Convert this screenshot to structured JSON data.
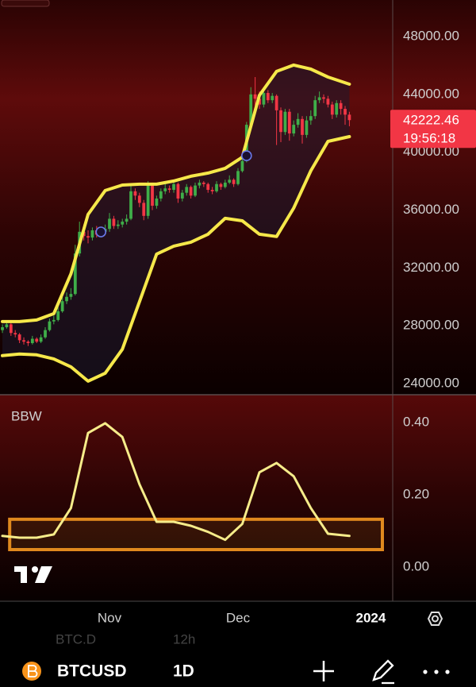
{
  "chart_data": [
    {
      "type": "candlestick",
      "xlim": [
        5.44,
        97.11
      ],
      "xticks": [
        {
          "value": 31,
          "label": "Nov"
        },
        {
          "value": 61,
          "label": "Dec"
        },
        {
          "value": 92,
          "label": "2024"
        }
      ],
      "ylim": [
        23230,
        50530
      ],
      "yticks": [
        {
          "value": 24000,
          "label": "24000.00"
        },
        {
          "value": 28000,
          "label": "28000.00"
        },
        {
          "value": 32000,
          "label": "32000.00"
        },
        {
          "value": 36000,
          "label": "36000.00"
        },
        {
          "value": 40000,
          "label": "40000.00"
        },
        {
          "value": 44000,
          "label": "44000.00"
        },
        {
          "value": 48000,
          "label": "48000.00"
        }
      ],
      "grid": false,
      "up_color": "#3fae49",
      "down_color": "#f23645",
      "x": [
        6,
        7,
        8,
        9,
        10,
        11,
        12,
        13,
        14,
        15,
        16,
        17,
        18,
        19,
        20,
        21,
        22,
        23,
        24,
        25,
        26,
        27,
        28,
        29,
        30,
        31,
        32,
        33,
        34,
        35,
        36,
        37,
        38,
        39,
        40,
        41,
        42,
        43,
        44,
        45,
        46,
        47,
        48,
        49,
        50,
        51,
        52,
        53,
        54,
        55,
        56,
        57,
        58,
        59,
        60,
        61,
        62,
        63,
        64,
        65,
        66,
        67,
        68,
        69,
        70,
        71,
        72,
        73,
        74,
        75,
        76,
        77,
        78,
        79,
        80,
        81,
        82,
        83,
        84,
        85,
        86,
        87
      ],
      "open": [
        27700,
        27900,
        28100,
        27500,
        27400,
        27000,
        26900,
        26800,
        27100,
        26900,
        27200,
        27700,
        28300,
        28400,
        29000,
        29700,
        30000,
        30200,
        33000,
        34500,
        34200,
        34100,
        34600,
        34300,
        34500,
        34700,
        35400,
        34900,
        35000,
        35200,
        35400,
        37300,
        37000,
        36500,
        35600,
        37800,
        36300,
        36800,
        37300,
        37500,
        37400,
        37800,
        36800,
        37200,
        37600,
        37000,
        37700,
        37900,
        37800,
        37400,
        37300,
        37800,
        37600,
        37900,
        38100,
        37800,
        38700,
        39400,
        41900,
        44000,
        43700,
        43300,
        44100,
        43600,
        43900,
        42900,
        41400,
        42800,
        41300,
        41900,
        42300,
        41200,
        42200,
        42500,
        43600,
        43800,
        43700,
        43300,
        42600,
        43400,
        43000,
        42600
      ],
      "high": [
        28100,
        28300,
        28200,
        27700,
        27500,
        27200,
        27000,
        27300,
        27200,
        27400,
        27900,
        28500,
        28700,
        29300,
        30000,
        30300,
        30600,
        33600,
        35200,
        35000,
        34600,
        34800,
        34900,
        34700,
        35000,
        35800,
        35600,
        35300,
        35400,
        35700,
        37800,
        37500,
        37200,
        36700,
        38000,
        37900,
        37000,
        37500,
        37800,
        37700,
        38000,
        37900,
        37400,
        37800,
        37700,
        37900,
        38100,
        38000,
        37900,
        37600,
        38000,
        37900,
        38100,
        38400,
        38200,
        38900,
        39600,
        42100,
        44500,
        45200,
        44200,
        44500,
        44300,
        44100,
        44000,
        43100,
        43000,
        43000,
        42200,
        42700,
        42500,
        42500,
        42900,
        43900,
        44200,
        44000,
        43900,
        43500,
        43600,
        43600,
        43200,
        42800
      ],
      "low": [
        27500,
        27800,
        27300,
        27200,
        26800,
        26700,
        26600,
        26700,
        26800,
        26800,
        27100,
        27600,
        28100,
        28300,
        28900,
        29500,
        29800,
        30100,
        32800,
        33900,
        33700,
        33900,
        34100,
        34100,
        34300,
        34500,
        34700,
        34700,
        34800,
        35000,
        35300,
        36700,
        36200,
        35300,
        35400,
        36000,
        36100,
        36600,
        37100,
        37200,
        37200,
        36500,
        36600,
        37000,
        36800,
        36900,
        37500,
        37600,
        37200,
        37100,
        37200,
        37400,
        37500,
        37800,
        37600,
        37700,
        38600,
        39300,
        41700,
        43200,
        43000,
        43100,
        43400,
        43400,
        40500,
        40700,
        41200,
        40800,
        41100,
        41700,
        40600,
        41000,
        41900,
        42300,
        43400,
        43400,
        43100,
        42300,
        42400,
        42600,
        41900,
        41800
      ],
      "close": [
        27900,
        28100,
        27500,
        27400,
        27000,
        26900,
        26800,
        27100,
        26900,
        27200,
        27700,
        28300,
        28400,
        29000,
        29700,
        30000,
        30200,
        33000,
        34500,
        34200,
        34100,
        34600,
        34300,
        34500,
        34700,
        35400,
        34900,
        35000,
        35200,
        35400,
        37300,
        37000,
        36500,
        35600,
        37800,
        36300,
        36800,
        37300,
        37500,
        37400,
        37800,
        36800,
        37200,
        37600,
        37000,
        37700,
        37900,
        37800,
        37400,
        37300,
        37800,
        37600,
        37900,
        38100,
        37800,
        38700,
        39400,
        41900,
        44000,
        43700,
        43300,
        44100,
        43600,
        43900,
        42900,
        41400,
        42800,
        41300,
        41900,
        42300,
        41200,
        42200,
        42500,
        43600,
        43800,
        43700,
        43300,
        42600,
        43400,
        43000,
        42600,
        42222.46
      ],
      "overlays": [
        {
          "color": "#f6e84a",
          "x": [
            6,
            10,
            14,
            18,
            22,
            26,
            30,
            34,
            38,
            42,
            46,
            50,
            54,
            58,
            62,
            66,
            70,
            74,
            78,
            82,
            87
          ],
          "values": [
            28290,
            28290,
            28400,
            28840,
            31590,
            35700,
            37350,
            37730,
            37790,
            37790,
            38010,
            38340,
            38560,
            38890,
            39660,
            43940,
            45590,
            46030,
            45750,
            45200,
            44710
          ]
        },
        {
          "color": "#f6e84a",
          "x": [
            6,
            10,
            14,
            18,
            22,
            26,
            30,
            34,
            38,
            42,
            46,
            50,
            54,
            58,
            62,
            66,
            70,
            74,
            78,
            82,
            87
          ],
          "values": [
            25930,
            26040,
            25990,
            25710,
            25160,
            24170,
            24720,
            26370,
            29660,
            32960,
            33510,
            33780,
            34330,
            35430,
            35260,
            34330,
            34170,
            36140,
            38720,
            40750,
            41080
          ]
        }
      ],
      "band_fill": "#1c1a2e",
      "markers": {
        "color": "#6a78e8",
        "x": [
          29,
          63
        ],
        "values": [
          34490,
          39760
        ]
      },
      "last_price": 42222.46,
      "countdown": "19:56:18",
      "last_color": "#f23645"
    },
    {
      "type": "line",
      "title": "BBW",
      "color": "#f6ec8a",
      "ylim": [
        -0.095,
        0.477
      ],
      "yticks": [
        {
          "value": 0,
          "label": "0.00"
        },
        {
          "value": 0.2,
          "label": "0.20"
        },
        {
          "value": 0.4,
          "label": "0.40"
        }
      ],
      "x": [
        6,
        10,
        14,
        18,
        22,
        26,
        30,
        34,
        38,
        42,
        46,
        50,
        54,
        58,
        62,
        66,
        70,
        74,
        78,
        82,
        87
      ],
      "values": [
        0.086,
        0.081,
        0.081,
        0.09,
        0.163,
        0.371,
        0.398,
        0.36,
        0.229,
        0.125,
        0.125,
        0.114,
        0.097,
        0.075,
        0.119,
        0.262,
        0.288,
        0.251,
        0.163,
        0.092,
        0.086
      ],
      "highlight": {
        "color": "#e0891e",
        "x": [
          7.7,
          94.7
        ],
        "range": [
          0.048,
          0.132
        ]
      }
    }
  ],
  "ui": {
    "symbol": "BTCUSD",
    "interval": "1D",
    "faded": [
      "BTC.D",
      "12h"
    ]
  }
}
